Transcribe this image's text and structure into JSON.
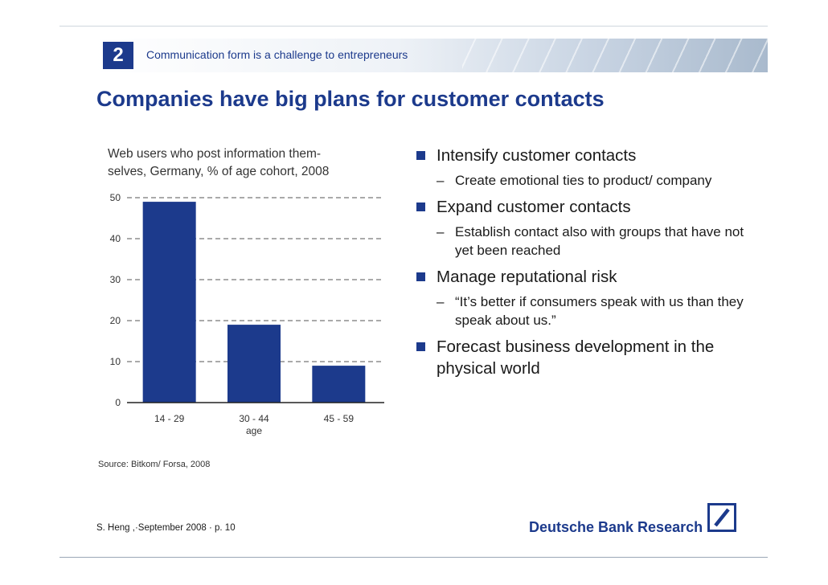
{
  "header": {
    "section_number": "2",
    "section_title": "Communication form is a challenge to entrepreneurs"
  },
  "slide": {
    "title": "Companies have big plans for customer contacts"
  },
  "chart_data": {
    "type": "bar",
    "title": "Web users who post information them-selves, Germany, % of age cohort, 2008",
    "title_lines": [
      "Web users who post information them-",
      "selves, Germany, % of age cohort, 2008"
    ],
    "categories": [
      "14 - 29",
      "30 - 44",
      "45 - 59"
    ],
    "values": [
      49,
      19,
      9
    ],
    "xlabel": "age",
    "ylabel": "",
    "ylim": [
      0,
      50
    ],
    "yticks": [
      0,
      10,
      20,
      30,
      40,
      50
    ],
    "grid": true,
    "bar_color": "#1c3a8c",
    "source": "Source: Bitkom/ Forsa, 2008"
  },
  "bullets": [
    {
      "text": "Intensify customer contacts",
      "sub": "Create emotional ties to product/ company"
    },
    {
      "text": "Expand customer contacts",
      "sub": "Establish contact also with groups that have not yet been reached"
    },
    {
      "text": "Manage reputational risk",
      "sub": "“It’s better if consumers speak with us than they speak about us.”"
    },
    {
      "text": "Forecast business development in the physical world",
      "sub": null
    }
  ],
  "footer": {
    "author_date_page": "S. Heng ,·September 2008 ·  p. 10",
    "brand": "Deutsche Bank Research",
    "logo_icon": "deutsche-bank-slash-logo"
  },
  "colors": {
    "accent": "#1c3a8c"
  }
}
